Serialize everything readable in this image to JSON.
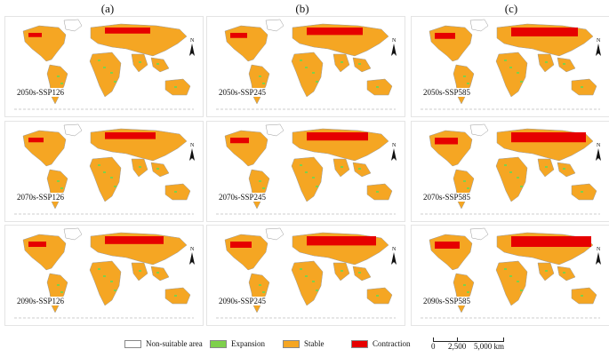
{
  "columns": [
    "(a)",
    "(b)",
    "(c)"
  ],
  "panels": [
    {
      "label": "2050s-SSP126",
      "contraction": 0.35
    },
    {
      "label": "2050s-SSP245",
      "contraction": 0.55
    },
    {
      "label": "2050s-SSP585",
      "contraction": 0.75
    },
    {
      "label": "2070s-SSP126",
      "contraction": 0.45
    },
    {
      "label": "2070s-SSP245",
      "contraction": 0.65
    },
    {
      "label": "2070s-SSP585",
      "contraction": 0.9
    },
    {
      "label": "2090s-SSP126",
      "contraction": 0.6
    },
    {
      "label": "2090s-SSP245",
      "contraction": 0.8
    },
    {
      "label": "2090s-SSP585",
      "contraction": 1.0
    }
  ],
  "north_arrow": "N",
  "legend": [
    {
      "label": "Non-suitable area",
      "color": "#ffffff"
    },
    {
      "label": "Expansion",
      "color": "#7ed04b"
    },
    {
      "label": "Stable",
      "color": "#f5a623"
    },
    {
      "label": "Contraction",
      "color": "#e60000"
    }
  ],
  "scale": {
    "ticks": [
      "0",
      "2,500",
      "5,000 km"
    ]
  }
}
